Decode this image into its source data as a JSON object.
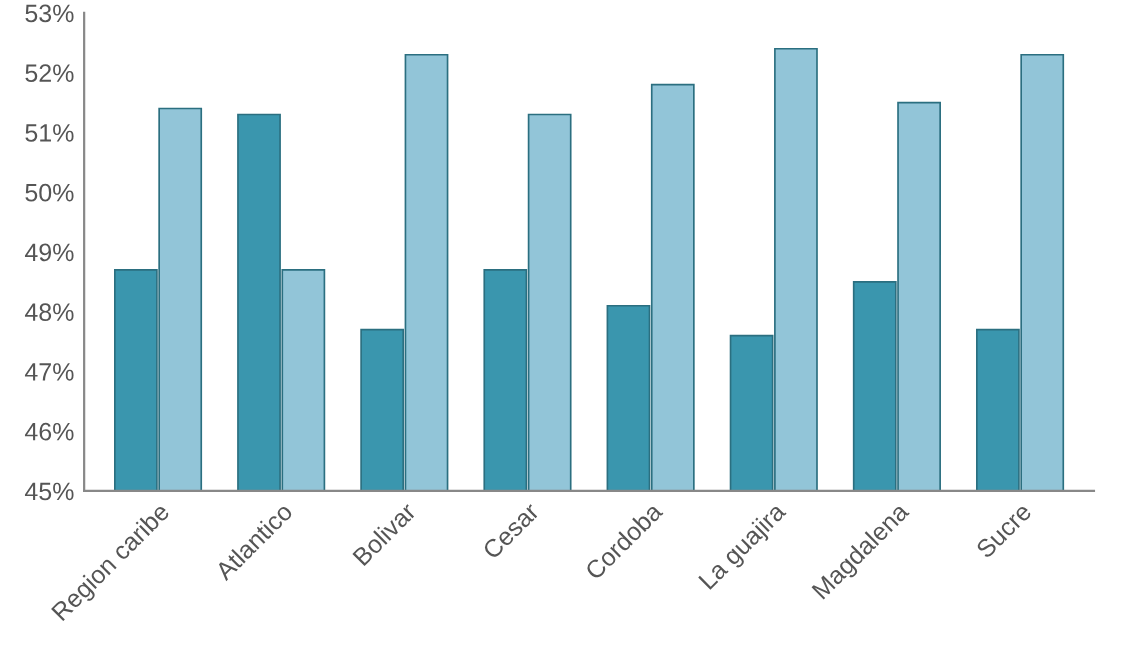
{
  "chart_data": {
    "type": "bar",
    "categories": [
      "Region caribe",
      "Atlantico",
      "Bolivar",
      "Cesar",
      "Cordoba",
      "La guajira",
      "Magdalena",
      "Sucre"
    ],
    "series": [
      {
        "color": "#3a96ae",
        "values": [
          48.7,
          51.3,
          47.7,
          48.7,
          48.1,
          47.6,
          48.5,
          47.7
        ]
      },
      {
        "color": "#92c5d8",
        "values": [
          51.4,
          48.7,
          52.3,
          51.3,
          51.8,
          52.4,
          51.5,
          52.3
        ]
      }
    ],
    "ylim": [
      45,
      53
    ],
    "yticks": [
      {
        "value": 45,
        "label": "45%"
      },
      {
        "value": 46,
        "label": "46%"
      },
      {
        "value": 47,
        "label": "47%"
      },
      {
        "value": 48,
        "label": "48%"
      },
      {
        "value": 49,
        "label": "49%"
      },
      {
        "value": 50,
        "label": "50%"
      },
      {
        "value": 51,
        "label": "51%"
      },
      {
        "value": 52,
        "label": "52%"
      },
      {
        "value": 53,
        "label": "53%"
      }
    ],
    "grid": false
  }
}
